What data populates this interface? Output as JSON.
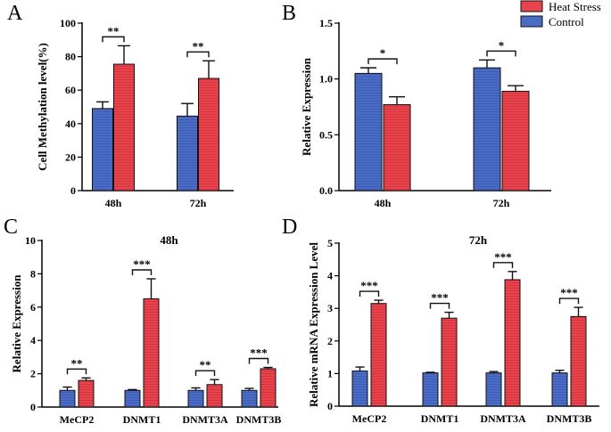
{
  "colors": {
    "control": "#4a6cc4",
    "heat": "#e8444e",
    "axis": "#000000"
  },
  "legend": [
    {
      "key": "heat",
      "label": "Heat Stress"
    },
    {
      "key": "control",
      "label": "Control"
    }
  ],
  "chart_data": [
    {
      "id": "A",
      "letter": "A",
      "type": "bar",
      "title": "",
      "ylabel": "Cell Methylation level(%)",
      "ylim": [
        0,
        100
      ],
      "yticks": [
        0,
        20,
        40,
        60,
        80,
        100
      ],
      "tick_labels": [
        "0",
        "20",
        "40",
        "60",
        "80",
        "100"
      ],
      "categories": [
        "48h",
        "72h"
      ],
      "series": [
        {
          "name": "Control",
          "key": "control",
          "values": [
            49,
            44.5
          ],
          "errors": [
            4,
            7.5
          ]
        },
        {
          "name": "Heat Stress",
          "key": "heat",
          "values": [
            75.5,
            67
          ],
          "errors": [
            11,
            10.5
          ]
        }
      ],
      "significance": [
        "**",
        "**"
      ]
    },
    {
      "id": "B",
      "letter": "B",
      "type": "bar",
      "title": "",
      "ylabel": "Relative Expression",
      "ylim": [
        0,
        1.5
      ],
      "yticks": [
        0,
        0.5,
        1.0,
        1.5
      ],
      "tick_labels": [
        "0.0",
        "0.5",
        "1.0",
        "1.5"
      ],
      "categories": [
        "48h",
        "72h"
      ],
      "series": [
        {
          "name": "Control",
          "key": "control",
          "values": [
            1.05,
            1.1
          ],
          "errors": [
            0.05,
            0.07
          ]
        },
        {
          "name": "Heat Stress",
          "key": "heat",
          "values": [
            0.77,
            0.89
          ],
          "errors": [
            0.07,
            0.05
          ]
        }
      ],
      "significance": [
        "*",
        "*"
      ]
    },
    {
      "id": "C",
      "letter": "C",
      "type": "bar",
      "title": "48h",
      "ylabel": "Relative Expression",
      "ylim": [
        0,
        10
      ],
      "yticks": [
        0,
        2,
        4,
        6,
        8,
        10
      ],
      "tick_labels": [
        "0",
        "2",
        "4",
        "6",
        "8",
        "10"
      ],
      "categories": [
        "MeCP2",
        "DNMT1",
        "DNMT3A",
        "DNMT3B"
      ],
      "series": [
        {
          "name": "Control",
          "key": "control",
          "values": [
            1.0,
            1.0,
            1.0,
            1.0
          ],
          "errors": [
            0.2,
            0.05,
            0.15,
            0.12
          ]
        },
        {
          "name": "Heat Stress",
          "key": "heat",
          "values": [
            1.6,
            6.5,
            1.35,
            2.3
          ],
          "errors": [
            0.15,
            1.2,
            0.3,
            0.08
          ]
        }
      ],
      "significance": [
        "**",
        "***",
        "**",
        "***"
      ]
    },
    {
      "id": "D",
      "letter": "D",
      "type": "bar",
      "title": "72h",
      "ylabel": "Relative mRNA Expression Level",
      "ylim": [
        0,
        5
      ],
      "yticks": [
        0,
        1,
        2,
        3,
        4,
        5
      ],
      "tick_labels": [
        "0",
        "1",
        "2",
        "3",
        "4",
        "5"
      ],
      "categories": [
        "MeCP2",
        "DNMT1",
        "DNMT3A",
        "DNMT3B"
      ],
      "series": [
        {
          "name": "Control",
          "key": "control",
          "values": [
            1.08,
            1.02,
            1.02,
            1.02
          ],
          "errors": [
            0.12,
            0.02,
            0.04,
            0.08
          ]
        },
        {
          "name": "Heat Stress",
          "key": "heat",
          "values": [
            3.15,
            2.7,
            3.88,
            2.75
          ],
          "errors": [
            0.1,
            0.18,
            0.25,
            0.28
          ]
        }
      ],
      "significance": [
        "***",
        "***",
        "***",
        "***"
      ]
    }
  ]
}
